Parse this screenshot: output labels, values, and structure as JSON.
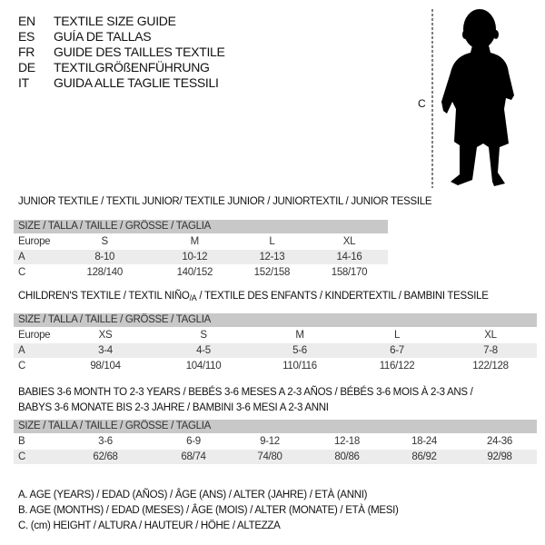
{
  "titles": [
    {
      "code": "EN",
      "text": "TEXTILE SIZE GUIDE"
    },
    {
      "code": "ES",
      "text": "GUÍA DE TALLAS"
    },
    {
      "code": "FR",
      "text": "GUIDE DES TAILLES TEXTILE"
    },
    {
      "code": "DE",
      "text": "TEXTILGRÖßENFÜHRUNG"
    },
    {
      "code": "IT",
      "text": "GUIDA ALLE TAGLIE TESSILI"
    }
  ],
  "figure": {
    "measure_label": "C"
  },
  "size_header": "SIZE / TALLA / TAILLE / GRÖSSE / TAGLIA",
  "junior": {
    "title": "JUNIOR TEXTILE / TEXTIL JUNIOR/ TEXTILE JUNIOR / JUNIORTEXTIL / JUNIOR TESSILE",
    "rows": [
      {
        "label": "Europe",
        "values": [
          "S",
          "M",
          "L",
          "XL"
        ]
      },
      {
        "label": "A",
        "values": [
          "8-10",
          "10-12",
          "12-13",
          "14-16"
        ]
      },
      {
        "label": "C",
        "values": [
          "128/140",
          "140/152",
          "152/158",
          "158/170"
        ]
      }
    ]
  },
  "children": {
    "title_pre": "CHILDREN'S TEXTILE / TEXTIL NIÑO",
    "title_sub": "/A",
    "title_post": " / TEXTILE DES ENFANTS / KINDERTEXTIL / BAMBINI TESSILE",
    "rows": [
      {
        "label": "Europe",
        "values": [
          "XS",
          "S",
          "M",
          "L",
          "XL"
        ]
      },
      {
        "label": "A",
        "values": [
          "3-4",
          "4-5",
          "5-6",
          "6-7",
          "7-8"
        ]
      },
      {
        "label": "C",
        "values": [
          "98/104",
          "104/110",
          "110/116",
          "116/122",
          "122/128"
        ]
      }
    ]
  },
  "babies": {
    "title_line1": "BABIES 3-6 MONTH TO 2-3 YEARS / BEBÉS 3-6 MESES A 2-3 AÑOS / BÉBÉS 3-6 MOIS À 2-3 ANS /",
    "title_line2": "BABYS 3-6 MONATE BIS 2-3 JAHRE / BAMBINI 3-6 MESI A 2-3 ANNI",
    "rows": [
      {
        "label": "B",
        "values": [
          "3-6",
          "6-9",
          "9-12",
          "12-18",
          "18-24",
          "24-36"
        ]
      },
      {
        "label": "C",
        "values": [
          "62/68",
          "68/74",
          "74/80",
          "80/86",
          "86/92",
          "92/98"
        ]
      }
    ]
  },
  "legend": [
    "A. AGE (YEARS) / EDAD (AÑOS) / ÂGE (ANS) / ALTER (JAHRE) / ETÀ (ANNI)",
    "B. AGE (MONTHS) / EDAD (MESES) / ÂGE (MOIS) / ALTER (MONATE) / ETÀ (MESI)",
    "C. (cm) HEIGHT / ALTURA / HAUTEUR / HÖHE / ALTEZZA"
  ]
}
